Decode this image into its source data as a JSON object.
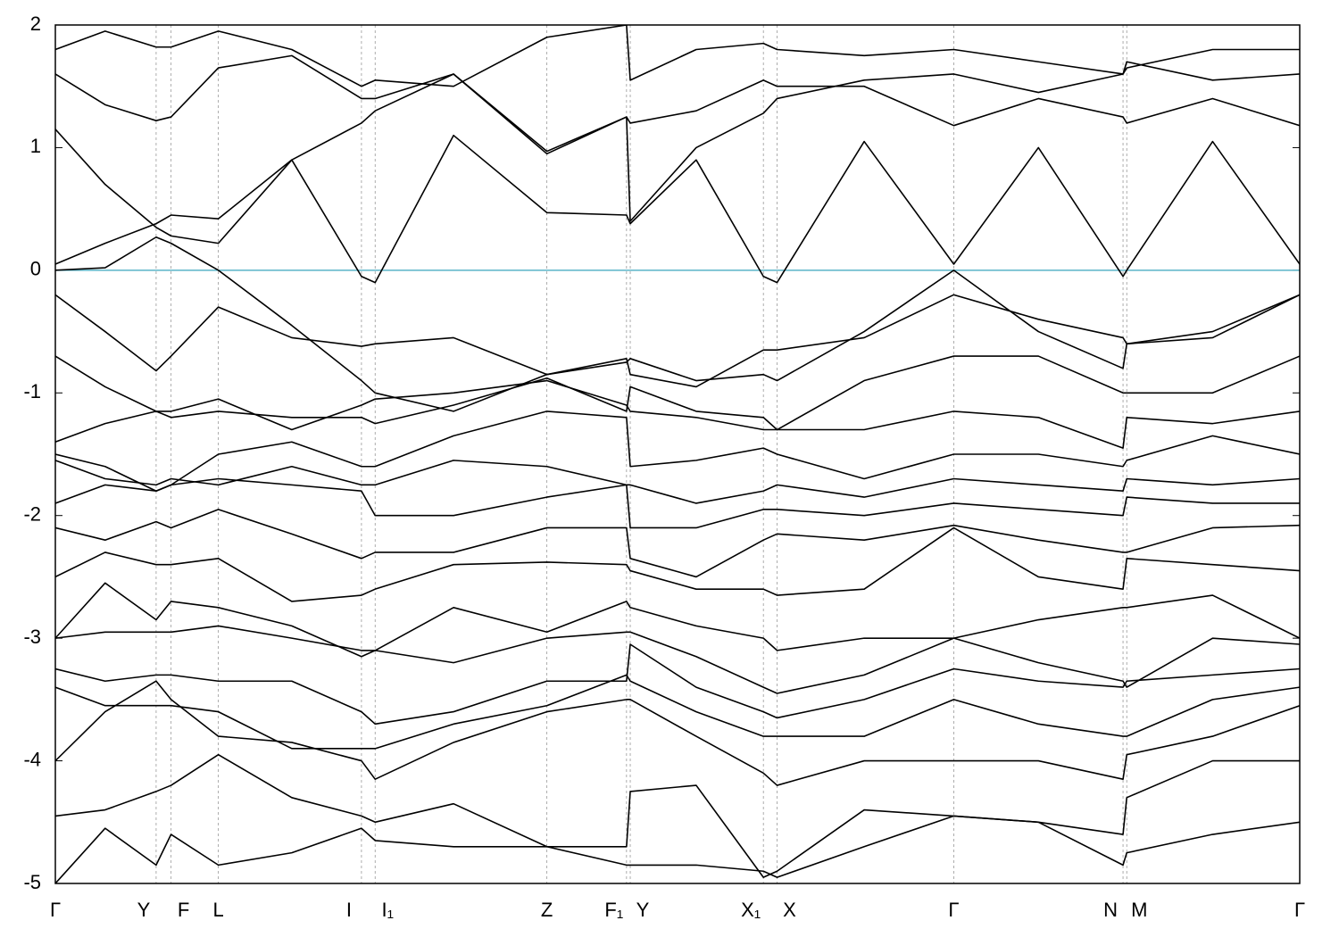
{
  "chart_data": {
    "type": "line",
    "x": [
      0,
      0.04,
      0.081,
      0.093,
      0.131,
      0.19,
      0.246,
      0.257,
      0.32,
      0.395,
      0.459,
      0.462,
      0.515,
      0.569,
      0.58,
      0.65,
      0.722,
      0.79,
      0.858,
      0.861,
      0.93,
      1.0
    ],
    "xlim": [
      0,
      1
    ],
    "xticks": [
      {
        "value": 0,
        "label": "Γ"
      },
      {
        "value": 0.081,
        "label": "Y"
      },
      {
        "value": 0.093,
        "label": "F"
      },
      {
        "value": 0.131,
        "label": "L"
      },
      {
        "value": 0.246,
        "label": "I"
      },
      {
        "value": 0.257,
        "label": "I₁"
      },
      {
        "value": 0.395,
        "label": "Z"
      },
      {
        "value": 0.459,
        "label": "F₁"
      },
      {
        "value": 0.462,
        "label": "Y"
      },
      {
        "value": 0.569,
        "label": "X₁"
      },
      {
        "value": 0.58,
        "label": "X"
      },
      {
        "value": 0.722,
        "label": "Γ"
      },
      {
        "value": 0.858,
        "label": "N"
      },
      {
        "value": 0.861,
        "label": "M"
      },
      {
        "value": 1.0,
        "label": "Γ"
      }
    ],
    "ylim": [
      -5,
      2
    ],
    "yticks": [
      -5,
      -4,
      -3,
      -2,
      -1,
      0,
      1,
      2
    ],
    "grid": true,
    "fermi_level": 0,
    "fermi_color": "#5ab4c8",
    "series": [
      {
        "color": "#000000",
        "values": [
          0.0,
          0.02,
          0.27,
          0.22,
          0.0,
          -0.45,
          -0.9,
          -1.0,
          -1.15,
          -0.85,
          -0.75,
          -0.72,
          -0.9,
          -0.85,
          -0.9,
          -0.5,
          0.0,
          -0.5,
          -0.8,
          -0.6,
          -0.55,
          -0.2
        ]
      },
      {
        "color": "#000000",
        "values": [
          0.05,
          0.22,
          0.38,
          0.45,
          0.42,
          0.9,
          -0.05,
          -0.1,
          1.1,
          0.47,
          0.45,
          0.38,
          0.9,
          -0.05,
          -0.1,
          1.05,
          0.05,
          1.0,
          -0.05,
          0.0,
          1.05,
          0.05
        ]
      },
      {
        "color": "#000000",
        "values": [
          1.15,
          0.7,
          0.35,
          0.28,
          0.22,
          0.9,
          1.2,
          1.3,
          1.6,
          0.95,
          1.25,
          1.2,
          1.3,
          1.55,
          1.5,
          1.5,
          1.18,
          1.4,
          1.25,
          1.2,
          1.4,
          1.18
        ]
      },
      {
        "color": "#000000",
        "values": [
          1.6,
          1.35,
          1.22,
          1.25,
          1.65,
          1.75,
          1.4,
          1.4,
          1.6,
          0.97,
          1.25,
          0.4,
          1.0,
          1.28,
          1.4,
          1.55,
          1.6,
          1.45,
          1.6,
          1.7,
          1.55,
          1.6
        ]
      },
      {
        "color": "#000000",
        "values": [
          1.8,
          1.95,
          1.82,
          1.82,
          1.95,
          1.8,
          1.5,
          1.55,
          1.5,
          1.9,
          2.0,
          1.55,
          1.8,
          1.85,
          1.8,
          1.75,
          1.8,
          1.7,
          1.6,
          1.65,
          1.8,
          1.8
        ]
      },
      {
        "color": "#000000",
        "values": [
          -0.2,
          -0.5,
          -0.82,
          -0.7,
          -0.3,
          -0.55,
          -0.62,
          -0.6,
          -0.55,
          -0.85,
          -0.72,
          -0.85,
          -0.95,
          -0.65,
          -0.65,
          -0.55,
          -0.2,
          -0.4,
          -0.55,
          -0.6,
          -0.5,
          -0.2
        ]
      },
      {
        "color": "#000000",
        "values": [
          -0.7,
          -0.95,
          -1.15,
          -1.2,
          -1.15,
          -1.2,
          -1.2,
          -1.25,
          -1.1,
          -0.88,
          -1.15,
          -0.95,
          -1.15,
          -1.2,
          -1.3,
          -0.9,
          -0.7,
          -0.7,
          -1.0,
          -1.0,
          -1.0,
          -0.7
        ]
      },
      {
        "color": "#000000",
        "values": [
          -1.4,
          -1.25,
          -1.15,
          -1.15,
          -1.05,
          -1.3,
          -1.1,
          -1.05,
          -1.0,
          -0.9,
          -1.1,
          -1.15,
          -1.2,
          -1.3,
          -1.3,
          -1.3,
          -1.15,
          -1.2,
          -1.45,
          -1.2,
          -1.25,
          -1.15
        ]
      },
      {
        "color": "#000000",
        "values": [
          -1.5,
          -1.6,
          -1.8,
          -1.75,
          -1.5,
          -1.4,
          -1.6,
          -1.6,
          -1.35,
          -1.15,
          -1.2,
          -1.6,
          -1.55,
          -1.45,
          -1.5,
          -1.7,
          -1.5,
          -1.5,
          -1.6,
          -1.55,
          -1.35,
          -1.5
        ]
      },
      {
        "color": "#000000",
        "values": [
          -1.55,
          -1.7,
          -1.75,
          -1.7,
          -1.75,
          -1.6,
          -1.75,
          -1.75,
          -1.55,
          -1.6,
          -1.75,
          -1.75,
          -1.9,
          -1.8,
          -1.75,
          -1.85,
          -1.7,
          -1.75,
          -1.8,
          -1.7,
          -1.75,
          -1.7
        ]
      },
      {
        "color": "#000000",
        "values": [
          -1.9,
          -1.75,
          -1.8,
          -1.75,
          -1.7,
          -1.75,
          -1.8,
          -2.0,
          -2.0,
          -1.85,
          -1.75,
          -2.1,
          -2.1,
          -1.95,
          -1.95,
          -2.0,
          -1.9,
          -1.95,
          -2.0,
          -1.85,
          -1.9,
          -1.9
        ]
      },
      {
        "color": "#000000",
        "values": [
          -2.1,
          -2.2,
          -2.05,
          -2.1,
          -1.95,
          -2.15,
          -2.35,
          -2.3,
          -2.3,
          -2.1,
          -2.1,
          -2.35,
          -2.5,
          -2.2,
          -2.15,
          -2.2,
          -2.08,
          -2.2,
          -2.3,
          -2.3,
          -2.1,
          -2.08
        ]
      },
      {
        "color": "#000000",
        "values": [
          -2.5,
          -2.3,
          -2.4,
          -2.4,
          -2.35,
          -2.7,
          -2.65,
          -2.6,
          -2.4,
          -2.38,
          -2.4,
          -2.45,
          -2.6,
          -2.6,
          -2.65,
          -2.6,
          -2.1,
          -2.5,
          -2.6,
          -2.35,
          -2.4,
          -2.45
        ]
      },
      {
        "color": "#000000",
        "values": [
          -3.0,
          -2.55,
          -2.85,
          -2.7,
          -2.75,
          -2.9,
          -3.15,
          -3.1,
          -2.75,
          -2.95,
          -2.7,
          -2.75,
          -2.9,
          -3.0,
          -3.1,
          -3.0,
          -3.0,
          -2.85,
          -2.75,
          -2.75,
          -2.65,
          -3.0
        ]
      },
      {
        "color": "#000000",
        "values": [
          -3.0,
          -2.95,
          -2.95,
          -2.95,
          -2.9,
          -3.0,
          -3.1,
          -3.1,
          -3.2,
          -3.0,
          -2.95,
          -2.95,
          -3.15,
          -3.4,
          -3.45,
          -3.3,
          -3.0,
          -3.2,
          -3.35,
          -3.4,
          -3.0,
          -3.05
        ]
      },
      {
        "color": "#000000",
        "values": [
          -3.25,
          -3.35,
          -3.3,
          -3.3,
          -3.35,
          -3.35,
          -3.6,
          -3.7,
          -3.6,
          -3.35,
          -3.35,
          -3.05,
          -3.4,
          -3.6,
          -3.65,
          -3.5,
          -3.25,
          -3.35,
          -3.4,
          -3.35,
          -3.3,
          -3.25
        ]
      },
      {
        "color": "#000000",
        "values": [
          -3.4,
          -3.55,
          -3.55,
          -3.55,
          -3.6,
          -3.9,
          -3.9,
          -3.9,
          -3.7,
          -3.55,
          -3.3,
          -3.35,
          -3.6,
          -3.8,
          -3.8,
          -3.8,
          -3.5,
          -3.7,
          -3.8,
          -3.8,
          -3.5,
          -3.4
        ]
      },
      {
        "color": "#000000",
        "values": [
          -4.0,
          -3.6,
          -3.35,
          -3.5,
          -3.8,
          -3.85,
          -4.0,
          -4.15,
          -3.85,
          -3.6,
          -3.5,
          -3.5,
          -3.8,
          -4.1,
          -4.2,
          -4.0,
          -4.0,
          -4.0,
          -4.15,
          -3.95,
          -3.8,
          -3.55
        ]
      },
      {
        "color": "#000000",
        "values": [
          -4.45,
          -4.4,
          -4.25,
          -4.2,
          -3.95,
          -4.3,
          -4.45,
          -4.5,
          -4.35,
          -4.7,
          -4.7,
          -4.25,
          -4.2,
          -4.95,
          -4.9,
          -4.4,
          -4.45,
          -4.5,
          -4.6,
          -4.3,
          -4.0,
          -4.0
        ]
      },
      {
        "color": "#000000",
        "values": [
          -5.0,
          -4.55,
          -4.85,
          -4.6,
          -4.85,
          -4.75,
          -4.55,
          -4.65,
          -4.7,
          -4.7,
          -4.85,
          -4.85,
          -4.85,
          -4.9,
          -4.95,
          -4.7,
          -4.45,
          -4.5,
          -4.85,
          -4.75,
          -4.6,
          -4.5
        ]
      }
    ]
  }
}
